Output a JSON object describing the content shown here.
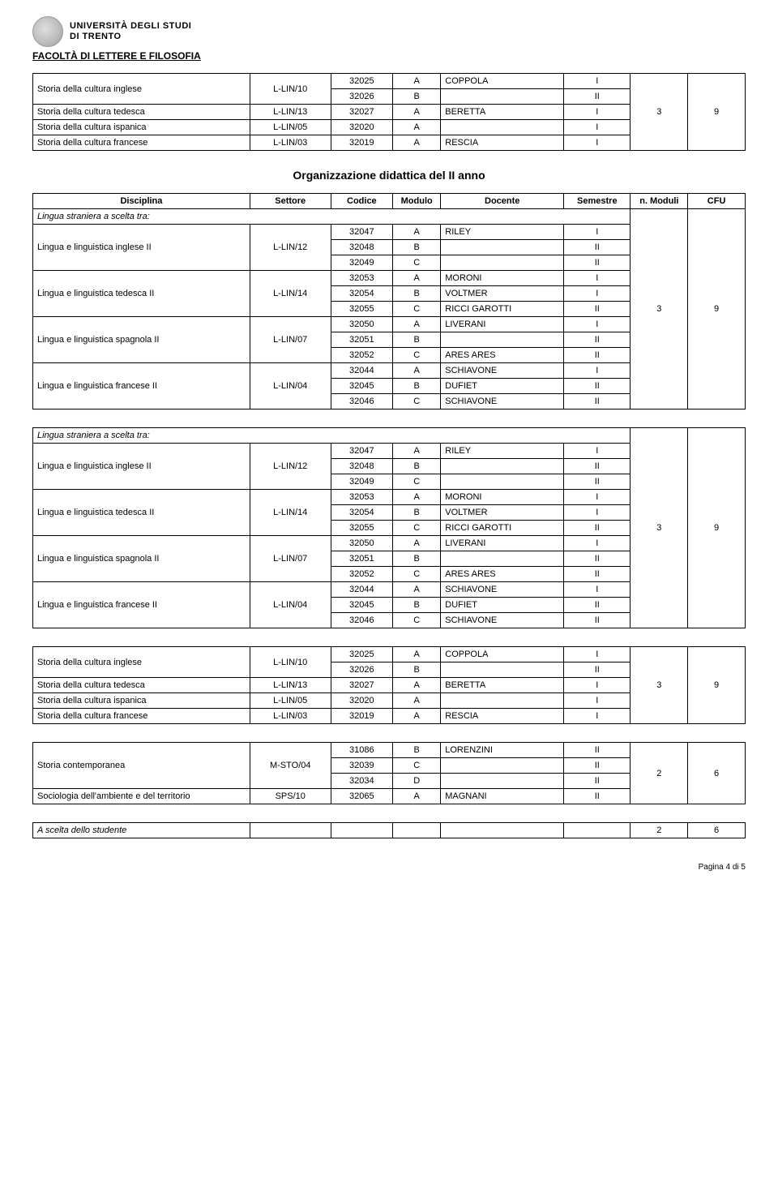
{
  "header": {
    "uni_line1": "UNIVERSITÀ DEGLI STUDI",
    "uni_line2": "DI TRENTO",
    "faculty": "FACOLTÀ DI LETTERE E FILOSOFIA"
  },
  "org_title": "Organizzazione didattica del II anno",
  "head": {
    "disc": "Disciplina",
    "set": "Settore",
    "cod": "Codice",
    "mod": "Modulo",
    "doc": "Docente",
    "sem": "Semestre",
    "n": "n. Moduli",
    "cfu": "CFU"
  },
  "section_label": "Lingua straniera a scelta tra:",
  "storia_block": {
    "rows": [
      {
        "disc": "Storia della cultura inglese",
        "set": "L-LIN/10",
        "cod": "32025",
        "mod": "A",
        "doc": "COPPOLA",
        "sem": "I",
        "rowspan_disc": 2
      },
      {
        "cod": "32026",
        "mod": "B",
        "doc": "",
        "sem": "II"
      },
      {
        "disc": "Storia della cultura tedesca",
        "set": "L-LIN/13",
        "cod": "32027",
        "mod": "A",
        "doc": "BERETTA",
        "sem": "I"
      },
      {
        "disc": "Storia della cultura ispanica",
        "set": "L-LIN/05",
        "cod": "32020",
        "mod": "A",
        "doc": "",
        "sem": "I"
      },
      {
        "disc": "Storia della cultura francese",
        "set": "L-LIN/03",
        "cod": "32019",
        "mod": "A",
        "doc": "RESCIA",
        "sem": "I"
      }
    ],
    "n": "3",
    "cfu": "9"
  },
  "lingua_block": {
    "rows": [
      {
        "disc": "Lingua e linguistica inglese II",
        "set": "L-LIN/12",
        "cod": "32047",
        "mod": "A",
        "doc": "RILEY",
        "sem": "I",
        "rowspan_disc": 3
      },
      {
        "cod": "32048",
        "mod": "B",
        "doc": "",
        "sem": "II"
      },
      {
        "cod": "32049",
        "mod": "C",
        "doc": "",
        "sem": "II"
      },
      {
        "disc": "Lingua e linguistica tedesca II",
        "set": "L-LIN/14",
        "cod": "32053",
        "mod": "A",
        "doc": "MORONI",
        "sem": "I",
        "rowspan_disc": 3
      },
      {
        "cod": "32054",
        "mod": "B",
        "doc": "VOLTMER",
        "sem": "I"
      },
      {
        "cod": "32055",
        "mod": "C",
        "doc": "RICCI GAROTTI",
        "sem": "II"
      },
      {
        "disc": "Lingua e linguistica spagnola II",
        "set": "L-LIN/07",
        "cod": "32050",
        "mod": "A",
        "doc": "LIVERANI",
        "sem": "I",
        "rowspan_disc": 3
      },
      {
        "cod": "32051",
        "mod": "B",
        "doc": "",
        "sem": "II"
      },
      {
        "cod": "32052",
        "mod": "C",
        "doc": "ARES ARES",
        "sem": "II"
      },
      {
        "disc": "Lingua e linguistica francese II",
        "set": "L-LIN/04",
        "cod": "32044",
        "mod": "A",
        "doc": "SCHIAVONE",
        "sem": "I",
        "rowspan_disc": 3
      },
      {
        "cod": "32045",
        "mod": "B",
        "doc": "DUFIET",
        "sem": "II"
      },
      {
        "cod": "32046",
        "mod": "C",
        "doc": "SCHIAVONE",
        "sem": "II"
      }
    ],
    "n": "3",
    "cfu": "9"
  },
  "storia_contemp": {
    "rows": [
      {
        "disc": "Storia contemporanea",
        "set": "M-STO/04",
        "cod": "31086",
        "mod": "B",
        "doc": "LORENZINI",
        "sem": "II",
        "rowspan_disc": 3
      },
      {
        "cod": "32039",
        "mod": "C",
        "doc": "",
        "sem": "II"
      },
      {
        "cod": "32034",
        "mod": "D",
        "doc": "",
        "sem": "II"
      },
      {
        "disc": "Sociologia dell'ambiente e del territorio",
        "set": "SPS/10",
        "cod": "32065",
        "mod": "A",
        "doc": "MAGNANI",
        "sem": "II"
      }
    ],
    "n": "2",
    "cfu": "6"
  },
  "scelta": {
    "label": "A scelta dello studente",
    "n": "2",
    "cfu": "6"
  },
  "footer": "Pagina 4 di 5"
}
